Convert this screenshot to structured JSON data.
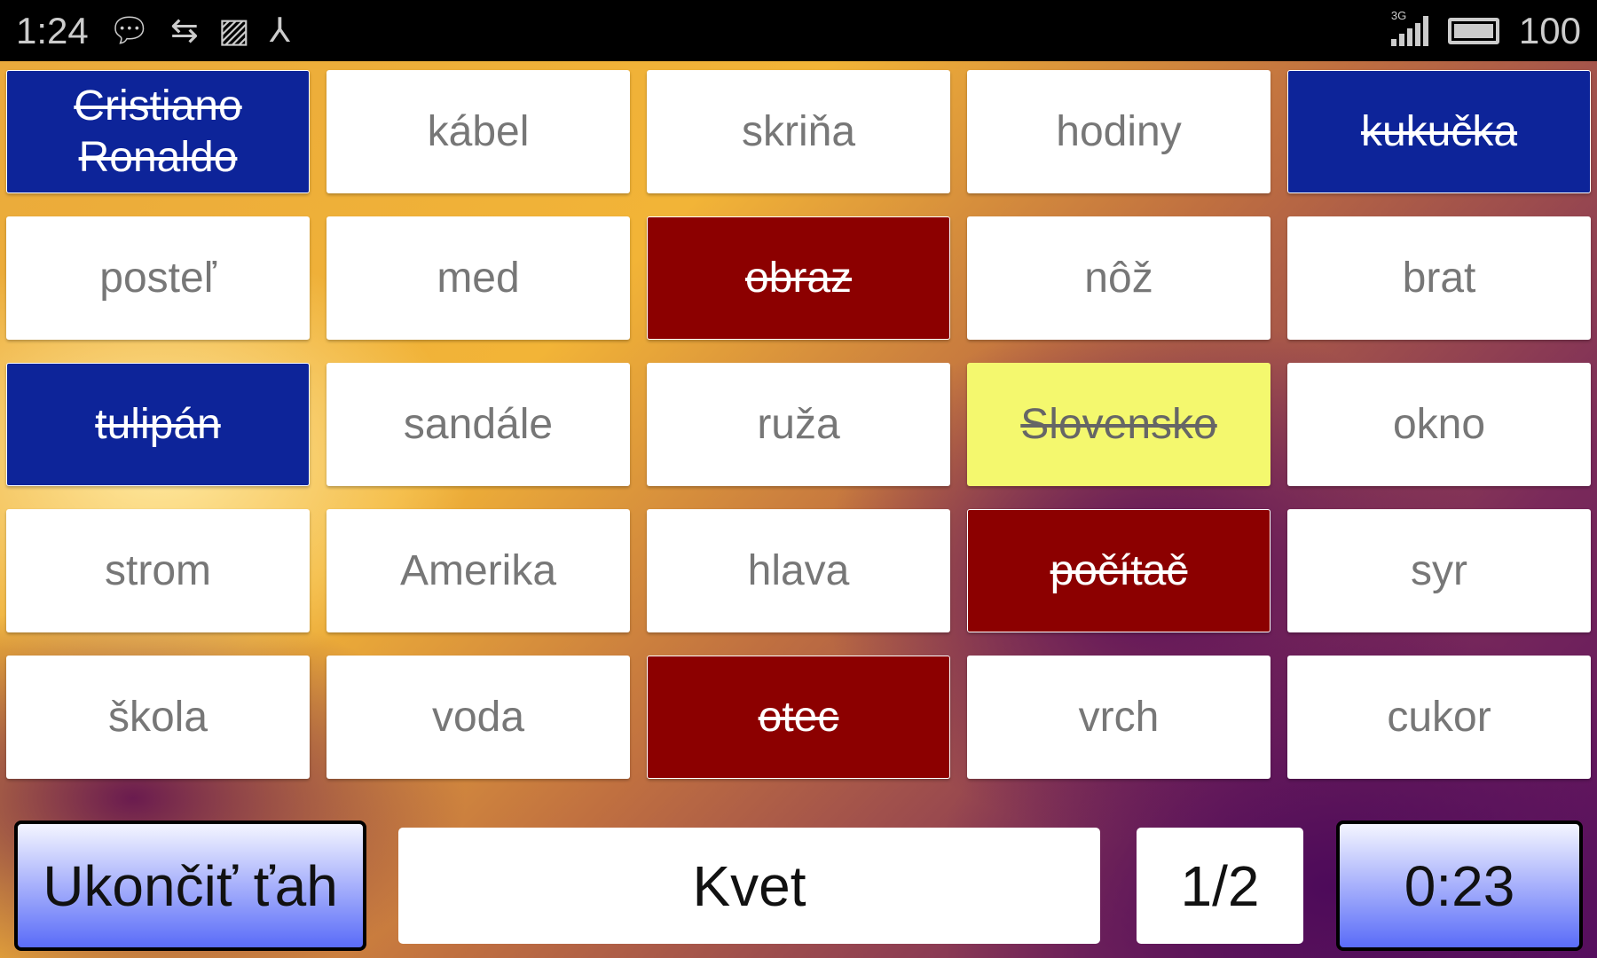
{
  "status_bar": {
    "time": "1:24",
    "icons": [
      "chat-bubble-icon",
      "usb-icon",
      "image-icon",
      "share-icon"
    ],
    "network": "3G",
    "battery": "100"
  },
  "grid": [
    {
      "word": "Cristiano Ronaldo",
      "state": "blue"
    },
    {
      "word": "kábel",
      "state": "plain"
    },
    {
      "word": "skriňa",
      "state": "plain"
    },
    {
      "word": "hodiny",
      "state": "plain"
    },
    {
      "word": "kukučka",
      "state": "blue"
    },
    {
      "word": "posteľ",
      "state": "plain"
    },
    {
      "word": "med",
      "state": "plain"
    },
    {
      "word": "obraz",
      "state": "red"
    },
    {
      "word": "nôž",
      "state": "plain"
    },
    {
      "word": "brat",
      "state": "plain"
    },
    {
      "word": "tulipán",
      "state": "blue"
    },
    {
      "word": "sandále",
      "state": "plain"
    },
    {
      "word": "ruža",
      "state": "plain"
    },
    {
      "word": "Slovensko",
      "state": "yellow"
    },
    {
      "word": "okno",
      "state": "plain"
    },
    {
      "word": "strom",
      "state": "plain"
    },
    {
      "word": "Amerika",
      "state": "plain"
    },
    {
      "word": "hlava",
      "state": "plain"
    },
    {
      "word": "počítač",
      "state": "red"
    },
    {
      "word": "syr",
      "state": "plain"
    },
    {
      "word": "škola",
      "state": "plain"
    },
    {
      "word": "voda",
      "state": "plain"
    },
    {
      "word": "otec",
      "state": "red"
    },
    {
      "word": "vrch",
      "state": "plain"
    },
    {
      "word": "cukor",
      "state": "plain"
    }
  ],
  "bottom": {
    "end_turn_label": "Ukončiť ťah",
    "clue": "Kvet",
    "count": "1/2",
    "timer": "0:23"
  },
  "colors": {
    "blue": "#0d2499",
    "red": "#8c0000",
    "yellow": "#f4f86e"
  }
}
